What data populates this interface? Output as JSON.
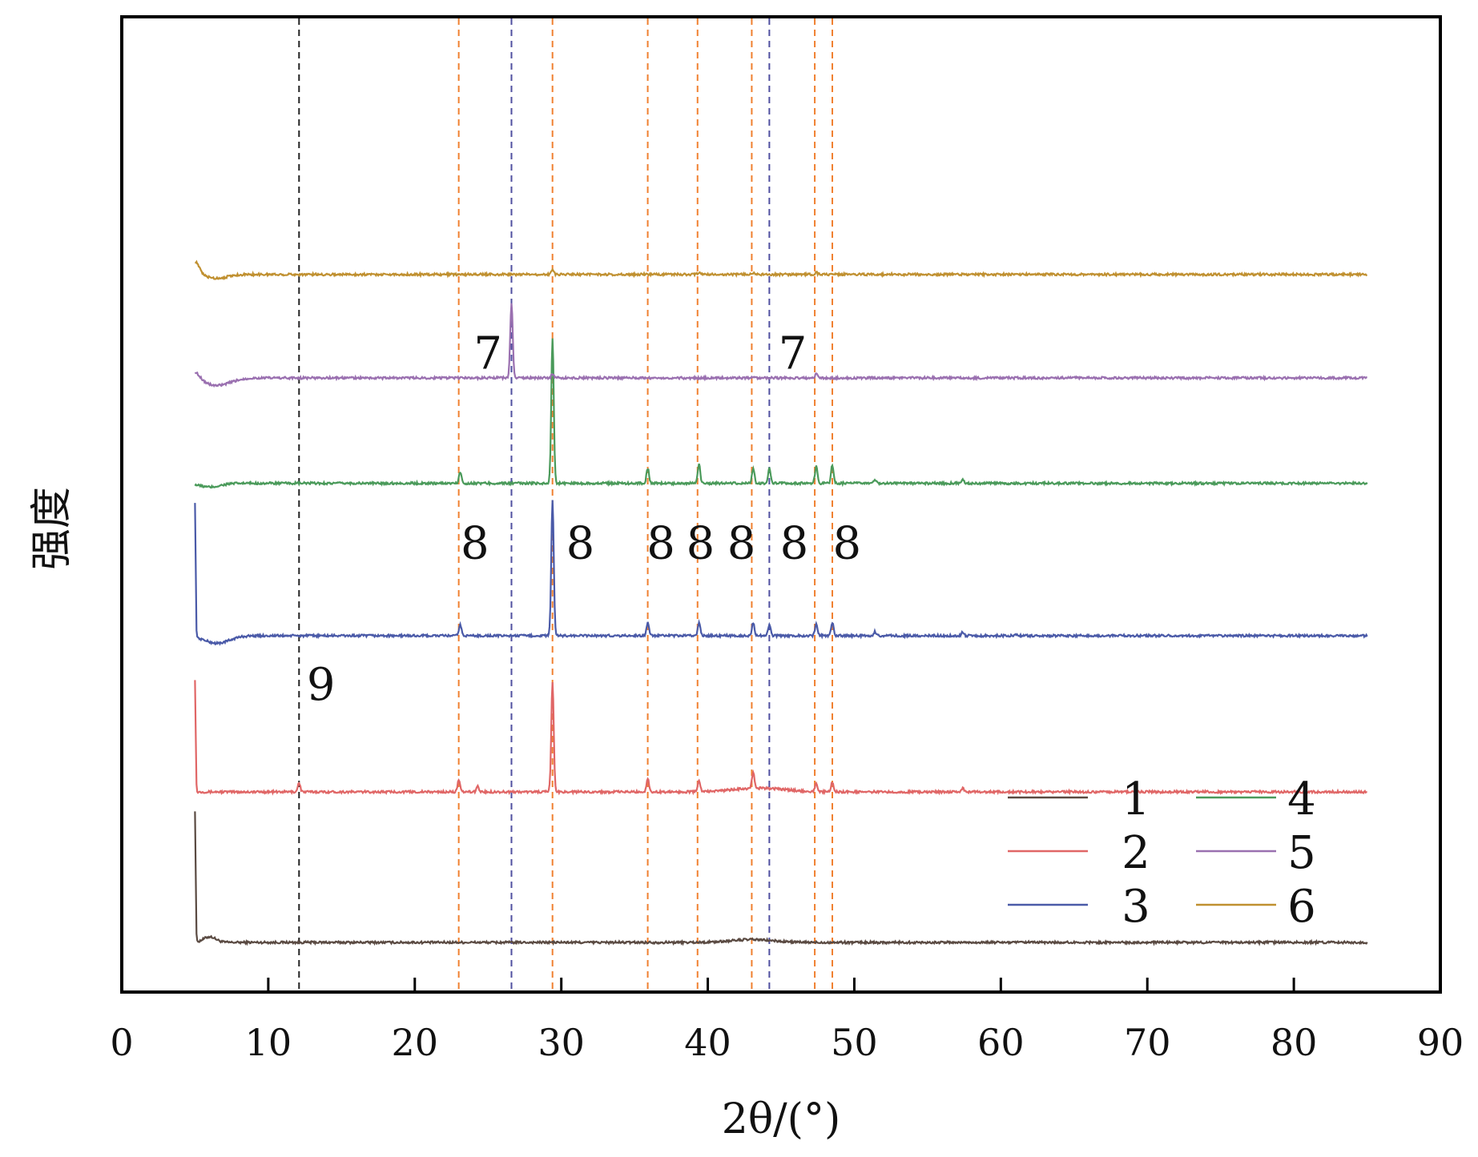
{
  "chart_data": {
    "type": "line",
    "title": "",
    "xlabel": "2θ/(°)",
    "ylabel": "强度",
    "xlim": [
      0,
      90
    ],
    "x_ticks": [
      0,
      10,
      20,
      30,
      40,
      50,
      60,
      70,
      80,
      90
    ],
    "y_ticks_shown": false,
    "grid": false,
    "legend": {
      "placement": "bottom-right",
      "columns": 2
    },
    "x_range_data": [
      5,
      85
    ],
    "series": [
      {
        "name": "1",
        "color": "#5a4a42",
        "offset": 0,
        "peaks": [
          [
            5.0,
            0.7
          ]
        ],
        "humps": [
          [
            6.0,
            0.03,
            0.6
          ],
          [
            43.0,
            0.015,
            2.0
          ]
        ]
      },
      {
        "name": "2",
        "color": "#e06666",
        "offset": 0.8,
        "peaks": [
          [
            5.0,
            0.6
          ],
          [
            12.1,
            0.05
          ],
          [
            23.0,
            0.06
          ],
          [
            24.3,
            0.03
          ],
          [
            29.4,
            0.58
          ],
          [
            35.9,
            0.07
          ],
          [
            39.4,
            0.06
          ],
          [
            43.1,
            0.08
          ],
          [
            47.4,
            0.04
          ],
          [
            48.5,
            0.05
          ],
          [
            57.4,
            0.02
          ]
        ],
        "humps": [
          [
            43.5,
            0.02,
            2.5
          ]
        ]
      },
      {
        "name": "3",
        "color": "#4a5aa8",
        "offset": 1.63,
        "peaks": [
          [
            5.0,
            0.72
          ],
          [
            23.1,
            0.06
          ],
          [
            29.4,
            0.72
          ],
          [
            35.9,
            0.07
          ],
          [
            39.4,
            0.07
          ],
          [
            43.1,
            0.07
          ],
          [
            44.2,
            0.06
          ],
          [
            47.4,
            0.06
          ],
          [
            48.5,
            0.07
          ],
          [
            51.4,
            0.02
          ],
          [
            57.4,
            0.02
          ],
          [
            61.0,
            0.01
          ]
        ],
        "humps": [
          [
            6.5,
            -0.04,
            1.2
          ]
        ]
      },
      {
        "name": "4",
        "color": "#4a9a5a",
        "offset": 2.44,
        "peaks": [
          [
            23.1,
            0.06
          ],
          [
            29.4,
            0.77
          ],
          [
            35.9,
            0.08
          ],
          [
            39.4,
            0.1
          ],
          [
            43.1,
            0.08
          ],
          [
            44.2,
            0.08
          ],
          [
            47.4,
            0.09
          ],
          [
            48.5,
            0.1
          ],
          [
            51.4,
            0.02
          ],
          [
            57.4,
            0.02
          ]
        ],
        "humps": [
          [
            6.0,
            -0.02,
            1.0
          ]
        ]
      },
      {
        "name": "5",
        "color": "#9a70b0",
        "offset": 3.0,
        "peaks": [
          [
            26.6,
            0.4
          ],
          [
            29.4,
            0.02
          ],
          [
            47.4,
            0.02
          ]
        ],
        "humps": [
          [
            5.0,
            0.04,
            0.5
          ],
          [
            6.5,
            -0.04,
            1.3
          ]
        ]
      },
      {
        "name": "6",
        "color": "#c09030",
        "offset": 3.55,
        "peaks": [
          [
            29.4,
            0.03
          ],
          [
            39.4,
            0.01
          ],
          [
            43.1,
            0.01
          ],
          [
            47.4,
            0.01
          ]
        ],
        "humps": [
          [
            5.0,
            0.07,
            0.4
          ],
          [
            6.5,
            -0.02,
            1.0
          ]
        ]
      }
    ],
    "reference_lines": [
      {
        "x": 12.1,
        "color": "#222222"
      },
      {
        "x": 23.0,
        "color": "#f08030"
      },
      {
        "x": 26.6,
        "color": "#5050a0"
      },
      {
        "x": 29.4,
        "color": "#f08030"
      },
      {
        "x": 35.9,
        "color": "#f08030"
      },
      {
        "x": 39.3,
        "color": "#f08030"
      },
      {
        "x": 43.0,
        "color": "#f08030"
      },
      {
        "x": 44.2,
        "color": "#5050a0"
      },
      {
        "x": 47.3,
        "color": "#f08030"
      },
      {
        "x": 48.5,
        "color": "#f08030"
      }
    ],
    "annotations": [
      {
        "text": "7",
        "x": 25.0,
        "level": 3.05
      },
      {
        "text": "7",
        "x": 45.8,
        "level": 3.05
      },
      {
        "text": "8",
        "x": 24.1,
        "level": 2.04
      },
      {
        "text": "8",
        "x": 31.3,
        "level": 2.04
      },
      {
        "text": "8",
        "x": 36.8,
        "level": 2.04
      },
      {
        "text": "8",
        "x": 39.5,
        "level": 2.04
      },
      {
        "text": "8",
        "x": 42.3,
        "level": 2.04
      },
      {
        "text": "8",
        "x": 45.9,
        "level": 2.04
      },
      {
        "text": "8",
        "x": 49.5,
        "level": 2.04
      },
      {
        "text": "9",
        "x": 13.6,
        "level": 1.29
      }
    ]
  }
}
